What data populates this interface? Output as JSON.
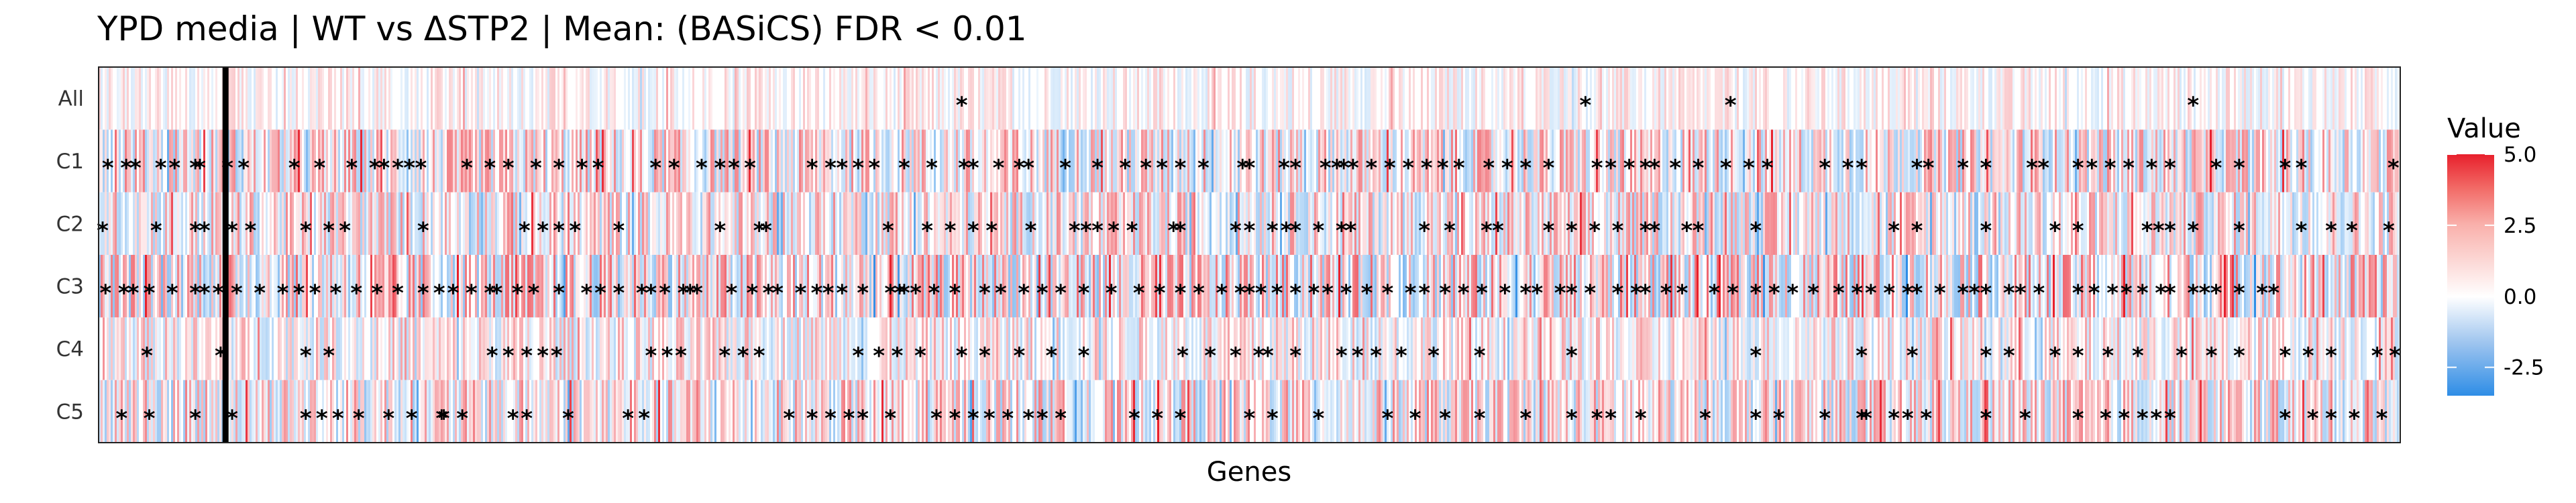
{
  "chart_data": {
    "type": "heatmap",
    "title": "YPD media | WT vs ΔSTP2 | Mean: (BASiCS) FDR < 0.01",
    "xlabel": "Genes",
    "ylabel": "",
    "rows": [
      "All",
      "C1",
      "C2",
      "C3",
      "C4",
      "C5"
    ],
    "legend": {
      "title": "Value",
      "ticks": [
        5.0,
        2.5,
        0.0,
        -2.5
      ],
      "tick_labels": [
        "5.0",
        "2.5",
        "0.0",
        "-2.5"
      ],
      "range": [
        -3.5,
        5.0
      ],
      "placement": "right",
      "colors": {
        "low": "#2e8de6",
        "mid": "#ffffff",
        "high": "#e8202c"
      }
    },
    "highlight_gene_position": 0.055,
    "significance_marker": "*",
    "significant_positions": {
      "All": [
        0.375,
        0.646,
        0.709,
        0.91
      ],
      "C1": [
        0.004,
        0.012,
        0.016,
        0.027,
        0.033,
        0.042,
        0.044,
        0.056,
        0.063,
        0.085,
        0.096,
        0.11,
        0.12,
        0.124,
        0.13,
        0.135,
        0.14,
        0.16,
        0.17,
        0.178,
        0.19,
        0.2,
        0.21,
        0.217,
        0.242,
        0.25,
        0.262,
        0.27,
        0.276,
        0.283,
        0.31,
        0.318,
        0.323,
        0.33,
        0.337,
        0.35,
        0.362,
        0.376,
        0.38,
        0.391,
        0.4,
        0.404,
        0.42,
        0.434,
        0.446,
        0.455,
        0.462,
        0.47,
        0.48,
        0.497,
        0.5,
        0.515,
        0.52,
        0.533,
        0.538,
        0.541,
        0.545,
        0.553,
        0.561,
        0.569,
        0.577,
        0.584,
        0.591,
        0.604,
        0.612,
        0.62,
        0.63,
        0.651,
        0.657,
        0.665,
        0.672,
        0.676,
        0.685,
        0.695,
        0.707,
        0.717,
        0.725,
        0.75,
        0.76,
        0.766,
        0.79,
        0.795,
        0.81,
        0.82,
        0.84,
        0.845,
        0.86,
        0.866,
        0.874,
        0.882,
        0.892,
        0.9,
        0.92,
        0.93,
        0.95,
        0.957,
        0.997
      ],
      "C2": [
        0.0,
        0.025,
        0.042,
        0.046,
        0.058,
        0.066,
        0.09,
        0.1,
        0.107,
        0.141,
        0.185,
        0.193,
        0.2,
        0.207,
        0.226,
        0.27,
        0.287,
        0.29,
        0.343,
        0.36,
        0.37,
        0.38,
        0.388,
        0.405,
        0.424,
        0.429,
        0.434,
        0.441,
        0.449,
        0.467,
        0.47,
        0.494,
        0.5,
        0.51,
        0.516,
        0.52,
        0.53,
        0.54,
        0.544,
        0.576,
        0.587,
        0.603,
        0.608,
        0.63,
        0.64,
        0.65,
        0.66,
        0.672,
        0.676,
        0.69,
        0.695,
        0.72,
        0.78,
        0.79,
        0.82,
        0.85,
        0.86,
        0.89,
        0.895,
        0.9,
        0.91,
        0.93,
        0.957,
        0.97,
        0.979,
        0.995
      ],
      "C3": [
        0.003,
        0.011,
        0.015,
        0.022,
        0.032,
        0.042,
        0.046,
        0.052,
        0.06,
        0.07,
        0.08,
        0.087,
        0.094,
        0.103,
        0.112,
        0.121,
        0.13,
        0.141,
        0.148,
        0.154,
        0.162,
        0.17,
        0.173,
        0.182,
        0.189,
        0.2,
        0.212,
        0.218,
        0.226,
        0.236,
        0.24,
        0.246,
        0.254,
        0.257,
        0.26,
        0.275,
        0.284,
        0.291,
        0.295,
        0.305,
        0.312,
        0.317,
        0.323,
        0.332,
        0.344,
        0.348,
        0.35,
        0.355,
        0.363,
        0.372,
        0.385,
        0.392,
        0.402,
        0.41,
        0.418,
        0.428,
        0.44,
        0.452,
        0.461,
        0.47,
        0.478,
        0.488,
        0.496,
        0.5,
        0.505,
        0.512,
        0.52,
        0.528,
        0.534,
        0.542,
        0.551,
        0.56,
        0.57,
        0.576,
        0.585,
        0.593,
        0.601,
        0.611,
        0.62,
        0.625,
        0.635,
        0.64,
        0.648,
        0.66,
        0.668,
        0.672,
        0.681,
        0.688,
        0.702,
        0.71,
        0.72,
        0.728,
        0.736,
        0.745,
        0.756,
        0.764,
        0.77,
        0.778,
        0.786,
        0.79,
        0.8,
        0.81,
        0.815,
        0.82,
        0.83,
        0.835,
        0.843,
        0.86,
        0.867,
        0.875,
        0.881,
        0.888,
        0.896,
        0.9,
        0.91,
        0.915,
        0.92,
        0.93,
        0.94,
        0.945
      ],
      "C4": [
        0.021,
        0.053,
        0.09,
        0.1,
        0.171,
        0.178,
        0.186,
        0.193,
        0.199,
        0.24,
        0.247,
        0.253,
        0.272,
        0.28,
        0.287,
        0.33,
        0.339,
        0.347,
        0.357,
        0.375,
        0.385,
        0.4,
        0.414,
        0.428,
        0.471,
        0.483,
        0.494,
        0.504,
        0.508,
        0.52,
        0.54,
        0.547,
        0.555,
        0.566,
        0.58,
        0.6,
        0.64,
        0.72,
        0.766,
        0.788,
        0.82,
        0.83,
        0.85,
        0.86,
        0.873,
        0.886,
        0.905,
        0.918,
        0.93,
        0.95,
        0.96,
        0.97,
        0.99,
        1.0
      ],
      "C5": [
        0.01,
        0.022,
        0.042,
        0.058,
        0.09,
        0.097,
        0.104,
        0.113,
        0.126,
        0.136,
        0.149,
        0.15,
        0.158,
        0.18,
        0.186,
        0.204,
        0.23,
        0.237,
        0.3,
        0.31,
        0.318,
        0.326,
        0.332,
        0.344,
        0.364,
        0.372,
        0.38,
        0.387,
        0.395,
        0.404,
        0.41,
        0.418,
        0.45,
        0.46,
        0.47,
        0.5,
        0.51,
        0.53,
        0.56,
        0.572,
        0.585,
        0.6,
        0.62,
        0.64,
        0.651,
        0.657,
        0.67,
        0.698,
        0.72,
        0.73,
        0.75,
        0.766,
        0.768,
        0.78,
        0.786,
        0.794,
        0.82,
        0.837,
        0.86,
        0.872,
        0.88,
        0.888,
        0.894,
        0.9,
        0.95,
        0.962,
        0.97,
        0.98,
        0.992
      ]
    }
  }
}
